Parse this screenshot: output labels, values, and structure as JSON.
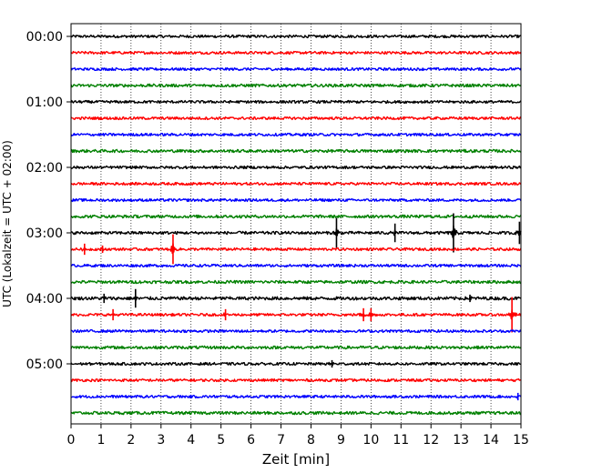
{
  "chart_data": {
    "type": "line",
    "title": "",
    "xlabel": "Zeit  [min]",
    "ylabel": "UTC (Lokalzeit = UTC + 02:00)",
    "xlim": [
      0,
      15
    ],
    "x_ticks": [
      "0",
      "1",
      "2",
      "3",
      "4",
      "5",
      "6",
      "7",
      "8",
      "9",
      "10",
      "11",
      "12",
      "13",
      "14",
      "15"
    ],
    "y_ticks": [
      "00:00",
      "01:00",
      "02:00",
      "03:00",
      "04:00",
      "05:00"
    ],
    "trace_interval_minutes": 15,
    "grid": "vertical dotted at each minute",
    "legend": "none",
    "colors": [
      "#000000",
      "#ff0000",
      "#0000ff",
      "#008000"
    ],
    "traces": [
      {
        "start": "00:00",
        "color": "#000000",
        "noise": 0.45,
        "events": []
      },
      {
        "start": "00:15",
        "color": "#ff0000",
        "noise": 0.45,
        "events": []
      },
      {
        "start": "00:30",
        "color": "#0000ff",
        "noise": 0.45,
        "events": []
      },
      {
        "start": "00:45",
        "color": "#008000",
        "noise": 0.5,
        "events": []
      },
      {
        "start": "01:00",
        "color": "#000000",
        "noise": 0.45,
        "events": []
      },
      {
        "start": "01:15",
        "color": "#ff0000",
        "noise": 0.45,
        "events": []
      },
      {
        "start": "01:30",
        "color": "#0000ff",
        "noise": 0.45,
        "events": []
      },
      {
        "start": "01:45",
        "color": "#008000",
        "noise": 0.5,
        "events": []
      },
      {
        "start": "02:00",
        "color": "#000000",
        "noise": 0.45,
        "events": []
      },
      {
        "start": "02:15",
        "color": "#ff0000",
        "noise": 0.45,
        "events": []
      },
      {
        "start": "02:30",
        "color": "#0000ff",
        "noise": 0.45,
        "events": []
      },
      {
        "start": "02:45",
        "color": "#008000",
        "noise": 0.5,
        "events": []
      },
      {
        "start": "03:00",
        "color": "#000000",
        "noise": 0.5,
        "events": [
          {
            "t": 8.85,
            "amp": 1.6
          },
          {
            "t": 10.8,
            "amp": 1.0
          },
          {
            "t": 12.75,
            "amp": 2.1
          },
          {
            "t": 14.95,
            "amp": 1.2
          }
        ]
      },
      {
        "start": "03:15",
        "color": "#ff0000",
        "noise": 0.45,
        "events": [
          {
            "t": 0.45,
            "amp": 0.6
          },
          {
            "t": 1.05,
            "amp": 0.4
          },
          {
            "t": 3.4,
            "amp": 1.6
          }
        ]
      },
      {
        "start": "03:30",
        "color": "#0000ff",
        "noise": 0.45,
        "events": []
      },
      {
        "start": "03:45",
        "color": "#008000",
        "noise": 0.5,
        "events": []
      },
      {
        "start": "04:00",
        "color": "#000000",
        "noise": 0.55,
        "events": [
          {
            "t": 1.1,
            "amp": 0.5
          },
          {
            "t": 2.15,
            "amp": 1.0
          },
          {
            "t": 13.3,
            "amp": 0.4
          }
        ]
      },
      {
        "start": "04:15",
        "color": "#ff0000",
        "noise": 0.45,
        "events": [
          {
            "t": 1.4,
            "amp": 0.6
          },
          {
            "t": 5.15,
            "amp": 0.6
          },
          {
            "t": 9.75,
            "amp": 0.7
          },
          {
            "t": 10.0,
            "amp": 0.7
          },
          {
            "t": 14.7,
            "amp": 1.9
          }
        ]
      },
      {
        "start": "04:30",
        "color": "#0000ff",
        "noise": 0.45,
        "events": []
      },
      {
        "start": "04:45",
        "color": "#008000",
        "noise": 0.5,
        "events": []
      },
      {
        "start": "05:00",
        "color": "#000000",
        "noise": 0.45,
        "events": [
          {
            "t": 8.7,
            "amp": 0.4
          }
        ]
      },
      {
        "start": "05:15",
        "color": "#ff0000",
        "noise": 0.45,
        "events": []
      },
      {
        "start": "05:30",
        "color": "#0000ff",
        "noise": 0.45,
        "events": [
          {
            "t": 14.9,
            "amp": 0.4
          }
        ]
      },
      {
        "start": "05:45",
        "color": "#008000",
        "noise": 0.5,
        "events": []
      }
    ]
  }
}
